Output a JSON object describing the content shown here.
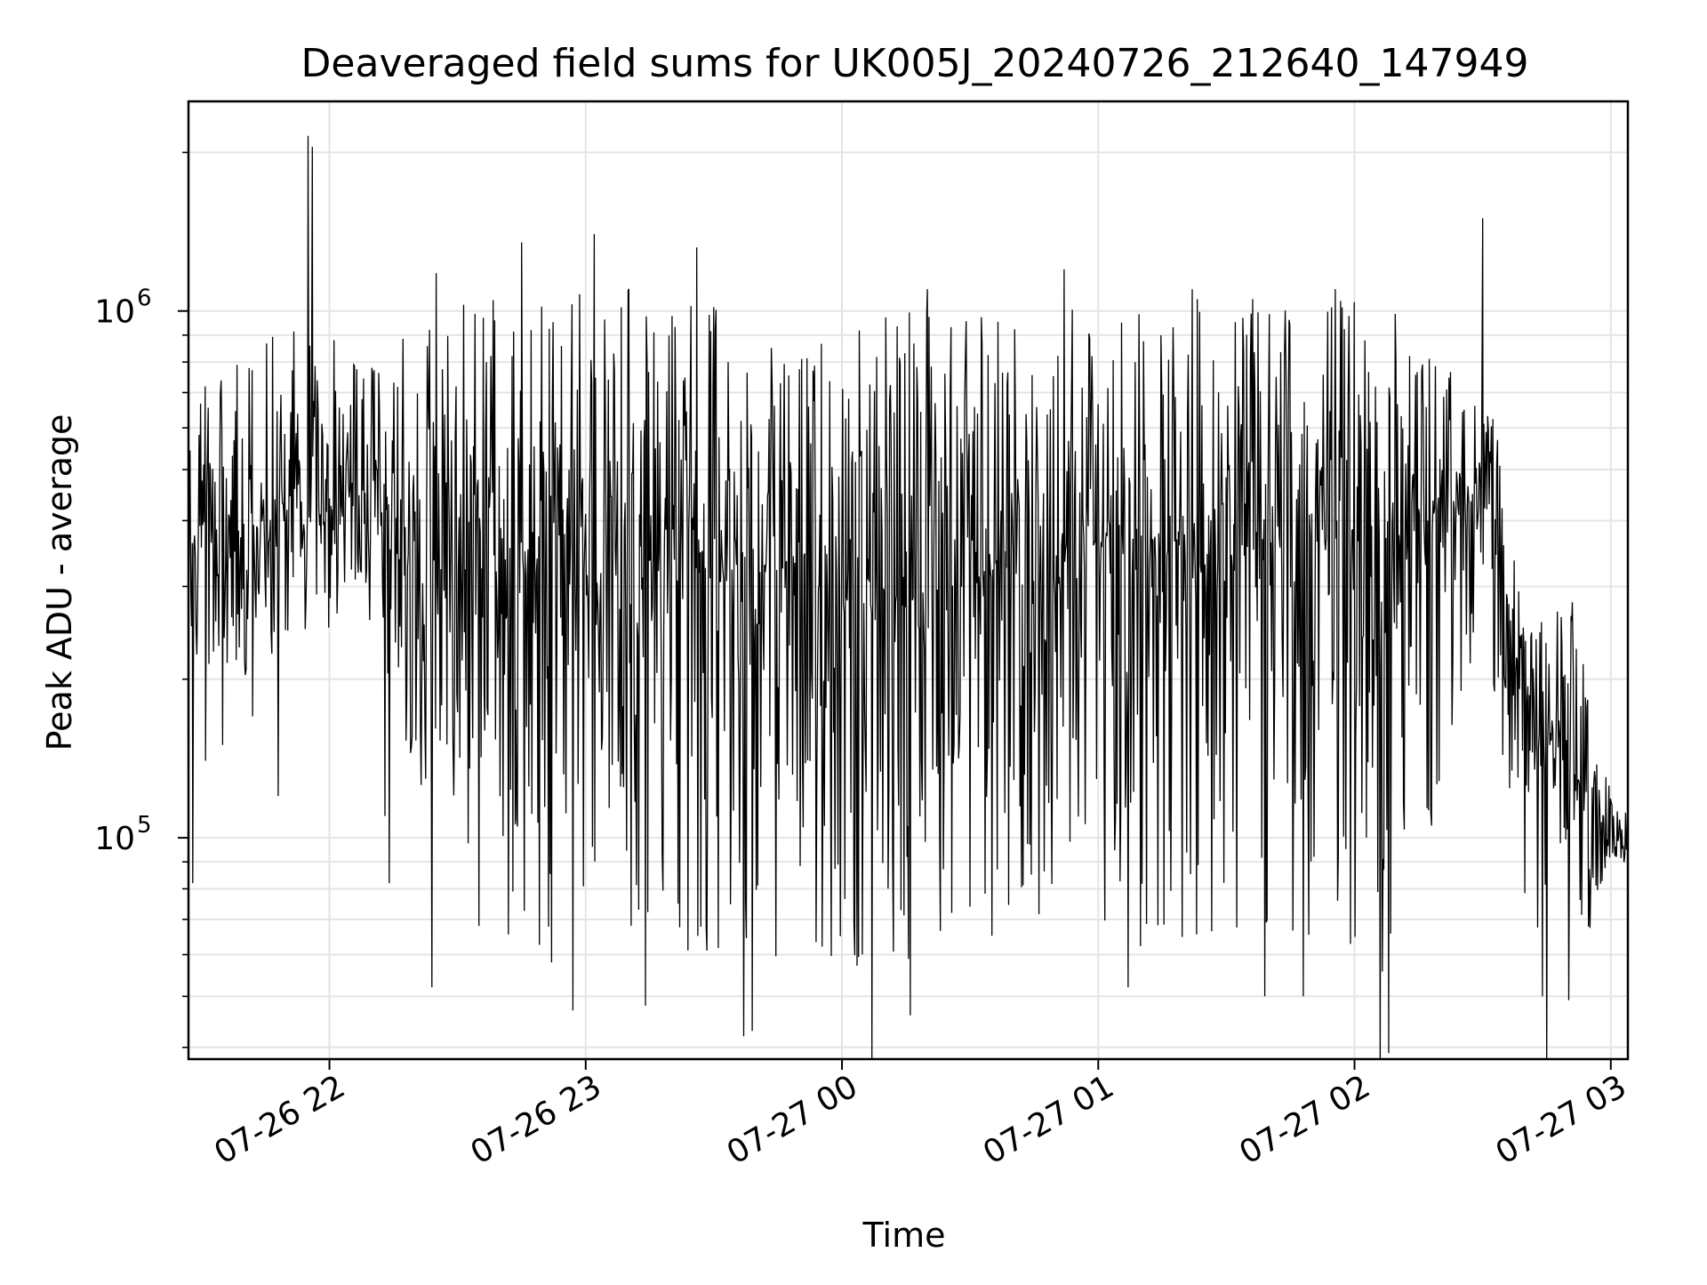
{
  "chart_data": {
    "type": "line",
    "title": "Deaveraged field sums for UK005J_20240726_212640_147949",
    "xlabel": "Time",
    "ylabel": "Peak ADU - average",
    "x_scale": "time",
    "y_scale": "log",
    "xlim": [
      "2024-07-26 21:27",
      "2024-07-27 03:04"
    ],
    "ylim": [
      38000,
      2500000
    ],
    "x_ticks": [
      {
        "value": "2024-07-26 22:00",
        "label": "07-26 22"
      },
      {
        "value": "2024-07-26 23:00",
        "label": "07-26 23"
      },
      {
        "value": "2024-07-27 00:00",
        "label": "07-27 00"
      },
      {
        "value": "2024-07-27 01:00",
        "label": "07-27 01"
      },
      {
        "value": "2024-07-27 02:00",
        "label": "07-27 02"
      },
      {
        "value": "2024-07-27 03:00",
        "label": "07-27 03"
      }
    ],
    "y_major_ticks": [
      {
        "value": 100000,
        "base": "10",
        "exp": "5"
      },
      {
        "value": 1000000,
        "base": "10",
        "exp": "6"
      }
    ],
    "grid": true,
    "line_color": "#000000",
    "series": [
      {
        "envelope": {
          "x": [
            "2024-07-26 21:27",
            "2024-07-26 21:40",
            "2024-07-26 21:55",
            "2024-07-26 22:10",
            "2024-07-26 22:25",
            "2024-07-26 22:40",
            "2024-07-26 22:55",
            "2024-07-26 23:10",
            "2024-07-26 23:25",
            "2024-07-26 23:40",
            "2024-07-26 23:55",
            "2024-07-27 00:10",
            "2024-07-27 00:25",
            "2024-07-27 00:40",
            "2024-07-27 00:55",
            "2024-07-27 01:10",
            "2024-07-27 01:25",
            "2024-07-27 01:40",
            "2024-07-27 01:55",
            "2024-07-27 02:10",
            "2024-07-27 02:25",
            "2024-07-27 02:33",
            "2024-07-27 02:40",
            "2024-07-27 02:50",
            "2024-07-27 03:00",
            "2024-07-27 03:04"
          ],
          "center": [
            380000,
            390000,
            430000,
            450000,
            330000,
            320000,
            310000,
            330000,
            320000,
            320000,
            300000,
            270000,
            300000,
            330000,
            360000,
            370000,
            350000,
            360000,
            380000,
            360000,
            450000,
            400000,
            170000,
            140000,
            100000,
            95000
          ],
          "hi": [
            720000,
            820000,
            1000000,
            880000,
            950000,
            1150000,
            1100000,
            1150000,
            1050000,
            1000000,
            950000,
            1000000,
            1000000,
            1050000,
            1080000,
            1100000,
            1050000,
            1060000,
            1150000,
            1000000,
            750000,
            620000,
            240000,
            300000,
            130000,
            120000
          ],
          "lo": [
            220000,
            200000,
            250000,
            250000,
            90000,
            65000,
            60000,
            62000,
            60000,
            60000,
            55000,
            55000,
            62000,
            65000,
            66000,
            62000,
            63000,
            63000,
            65000,
            50000,
            180000,
            180000,
            70000,
            48000,
            88000,
            88000
          ]
        },
        "spikes": [
          {
            "x": "2024-07-26 21:28",
            "y": 82000
          },
          {
            "x": "2024-07-26 21:31",
            "y": 140000
          },
          {
            "x": "2024-07-26 21:35",
            "y": 150000
          },
          {
            "x": "2024-07-26 21:42",
            "y": 170000
          },
          {
            "x": "2024-07-26 21:48",
            "y": 120000
          },
          {
            "x": "2024-07-26 21:55",
            "y": 2150000
          },
          {
            "x": "2024-07-26 21:56",
            "y": 2050000
          },
          {
            "x": "2024-07-26 22:13",
            "y": 110000
          },
          {
            "x": "2024-07-26 22:14",
            "y": 82000
          },
          {
            "x": "2024-07-26 22:24",
            "y": 52000
          },
          {
            "x": "2024-07-26 22:25",
            "y": 1180000
          },
          {
            "x": "2024-07-26 22:35",
            "y": 68000
          },
          {
            "x": "2024-07-26 22:45",
            "y": 1350000
          },
          {
            "x": "2024-07-26 22:52",
            "y": 58000
          },
          {
            "x": "2024-07-26 22:57",
            "y": 47000
          },
          {
            "x": "2024-07-26 23:02",
            "y": 1400000
          },
          {
            "x": "2024-07-26 23:14",
            "y": 48000
          },
          {
            "x": "2024-07-26 23:26",
            "y": 1320000
          },
          {
            "x": "2024-07-26 23:37",
            "y": 42000
          },
          {
            "x": "2024-07-26 23:39",
            "y": 43000
          },
          {
            "x": "2024-07-27 00:07",
            "y": 38000
          },
          {
            "x": "2024-07-27 00:16",
            "y": 46000
          },
          {
            "x": "2024-07-27 00:20",
            "y": 1100000
          },
          {
            "x": "2024-07-27 00:52",
            "y": 1200000
          },
          {
            "x": "2024-07-27 01:07",
            "y": 52000
          },
          {
            "x": "2024-07-27 01:22",
            "y": 1100000
          },
          {
            "x": "2024-07-27 01:39",
            "y": 50000
          },
          {
            "x": "2024-07-27 01:48",
            "y": 50000
          },
          {
            "x": "2024-07-27 02:06",
            "y": 36000
          },
          {
            "x": "2024-07-27 02:08",
            "y": 39000
          },
          {
            "x": "2024-07-27 02:30",
            "y": 1500000
          },
          {
            "x": "2024-07-27 02:44",
            "y": 50000
          },
          {
            "x": "2024-07-27 02:45",
            "y": 36000
          },
          {
            "x": "2024-07-27 02:51",
            "y": 280000
          }
        ]
      }
    ]
  }
}
